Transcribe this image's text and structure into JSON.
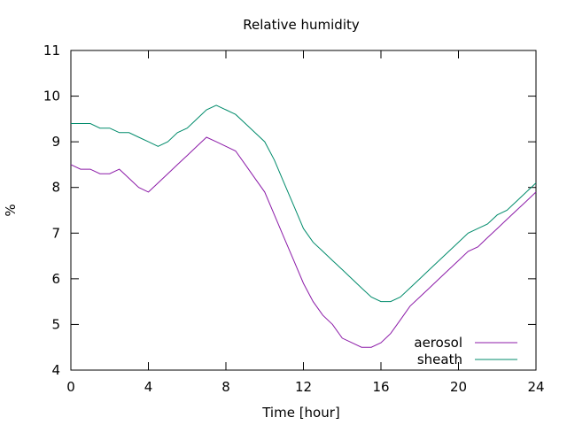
{
  "chart_data": {
    "type": "line",
    "title": "Relative humidity",
    "xlabel": "Time [hour]",
    "ylabel": "%",
    "xlim": [
      0,
      24
    ],
    "ylim": [
      4,
      11
    ],
    "xticks": [
      0,
      4,
      8,
      12,
      16,
      20,
      24
    ],
    "yticks": [
      4,
      5,
      6,
      7,
      8,
      9,
      10,
      11
    ],
    "grid": false,
    "legend_position": "bottom-right",
    "series": [
      {
        "name": "aerosol",
        "color": "#8c1ba8",
        "x": [
          0,
          0.5,
          1,
          1.5,
          2,
          2.5,
          3,
          3.5,
          4,
          4.5,
          5,
          5.5,
          6,
          6.5,
          7,
          7.5,
          8,
          8.5,
          9,
          9.5,
          10,
          10.5,
          11,
          11.5,
          12,
          12.5,
          13,
          13.5,
          14,
          14.5,
          15,
          15.5,
          16,
          16.5,
          17,
          17.5,
          18,
          18.5,
          19,
          19.5,
          20,
          20.5,
          21,
          21.5,
          22,
          22.5,
          23,
          23.5,
          24
        ],
        "y": [
          8.5,
          8.4,
          8.4,
          8.3,
          8.3,
          8.4,
          8.2,
          8.0,
          7.9,
          8.1,
          8.3,
          8.5,
          8.7,
          8.9,
          9.1,
          9.0,
          8.9,
          8.8,
          8.5,
          8.2,
          7.9,
          7.4,
          6.9,
          6.4,
          5.9,
          5.5,
          5.2,
          5.0,
          4.7,
          4.6,
          4.5,
          4.5,
          4.6,
          4.8,
          5.1,
          5.4,
          5.6,
          5.8,
          6.0,
          6.2,
          6.4,
          6.6,
          6.7,
          6.9,
          7.1,
          7.3,
          7.5,
          7.7,
          7.9
        ]
      },
      {
        "name": "sheath",
        "color": "#008b6b",
        "x": [
          0,
          0.5,
          1,
          1.5,
          2,
          2.5,
          3,
          3.5,
          4,
          4.5,
          5,
          5.5,
          6,
          6.5,
          7,
          7.5,
          8,
          8.5,
          9,
          9.5,
          10,
          10.5,
          11,
          11.5,
          12,
          12.5,
          13,
          13.5,
          14,
          14.5,
          15,
          15.5,
          16,
          16.5,
          17,
          17.5,
          18,
          18.5,
          19,
          19.5,
          20,
          20.5,
          21,
          21.5,
          22,
          22.5,
          23,
          23.5,
          24
        ],
        "y": [
          9.4,
          9.4,
          9.4,
          9.3,
          9.3,
          9.2,
          9.2,
          9.1,
          9.0,
          8.9,
          9.0,
          9.2,
          9.3,
          9.5,
          9.7,
          9.8,
          9.7,
          9.6,
          9.4,
          9.2,
          9.0,
          8.6,
          8.1,
          7.6,
          7.1,
          6.8,
          6.6,
          6.4,
          6.2,
          6.0,
          5.8,
          5.6,
          5.5,
          5.5,
          5.6,
          5.8,
          6.0,
          6.2,
          6.4,
          6.6,
          6.8,
          7.0,
          7.1,
          7.2,
          7.4,
          7.5,
          7.7,
          7.9,
          8.1
        ]
      }
    ]
  }
}
